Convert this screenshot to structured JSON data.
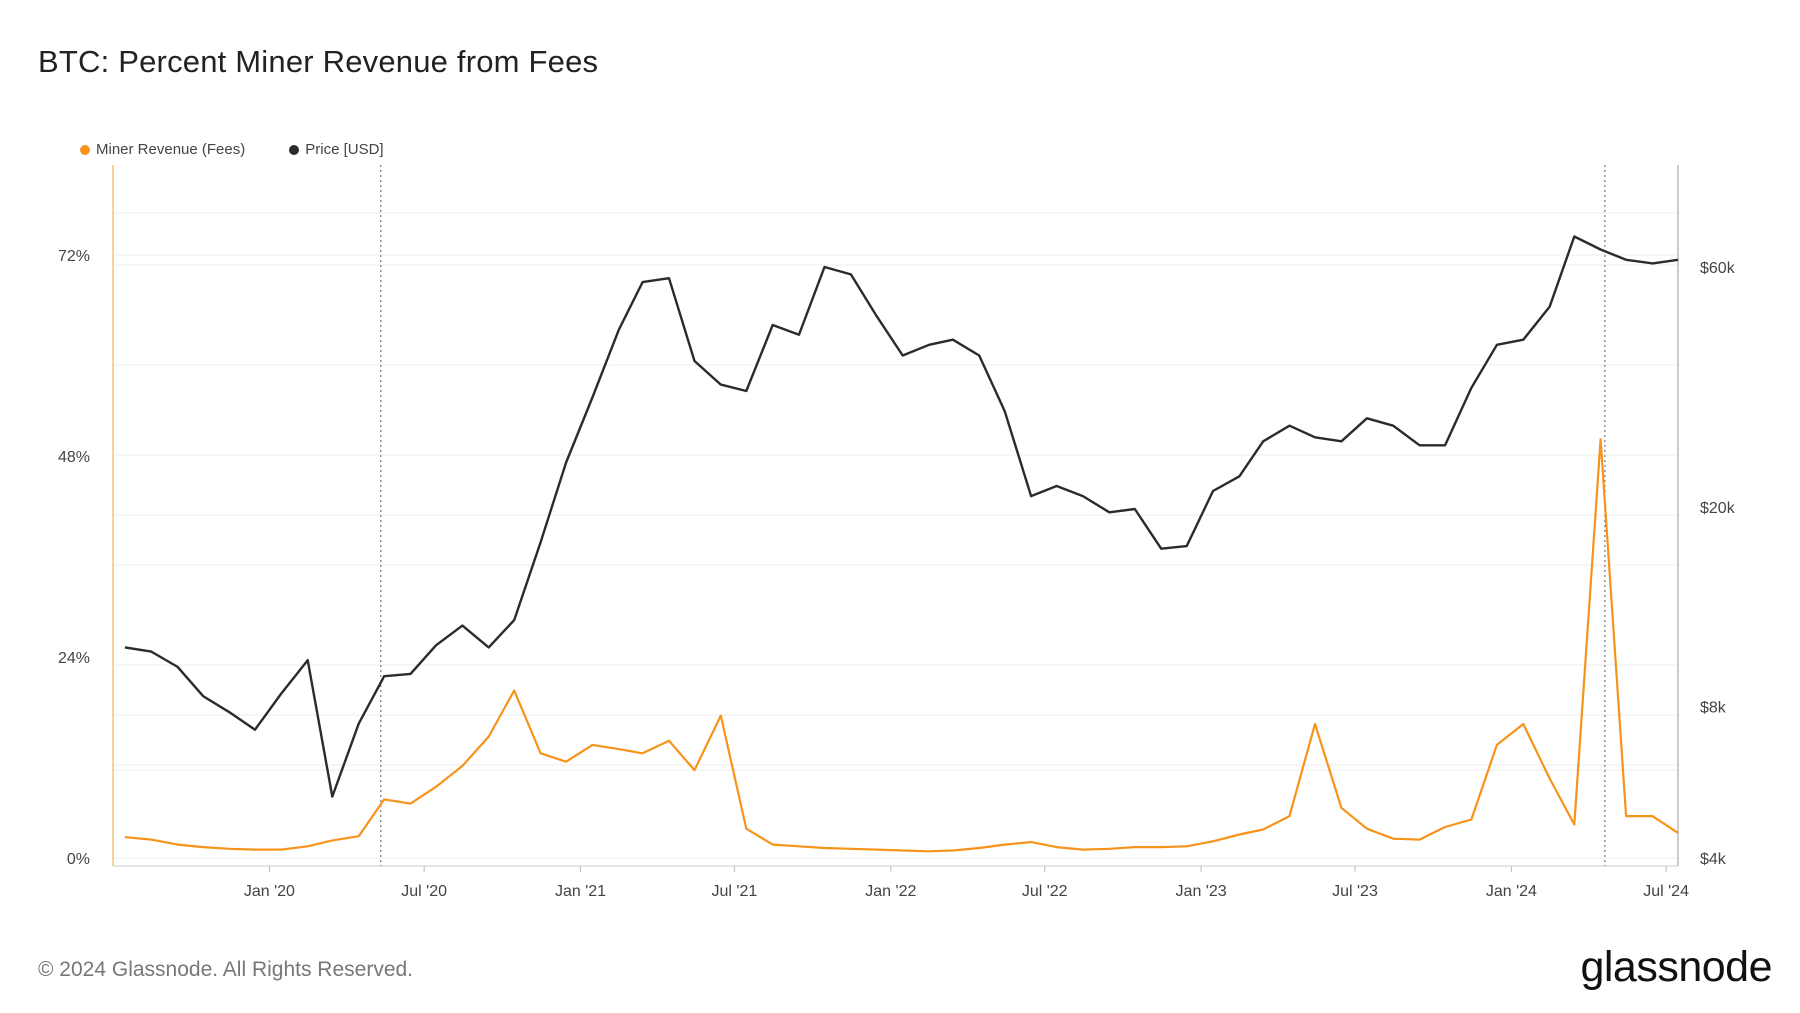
{
  "header": {
    "title": "BTC: Percent Miner Revenue from Fees"
  },
  "footer": {
    "copyright": "© 2024 Glassnode. All Rights Reserved.",
    "logo_text": "glassnode"
  },
  "colors": {
    "fees": "#f7931a",
    "price": "#2b2b2b",
    "grid": "#ececec",
    "event_line": "#777777"
  },
  "chart_data": {
    "type": "line",
    "title": "BTC: Percent Miner Revenue from Fees",
    "legend_position": "top-left",
    "grid": true,
    "x_axis": {
      "ticks": [
        "Jan '20",
        "Jul '20",
        "Jan '21",
        "Jul '21",
        "Jan '22",
        "Jul '22",
        "Jan '23",
        "Jul '23",
        "Jan '24",
        "Jul '24"
      ],
      "range": [
        "2019-07-01",
        "2024-07-15"
      ]
    },
    "y_axis_left": {
      "ticks": [
        "0%",
        "24%",
        "48%",
        "72%"
      ],
      "range": [
        0,
        72
      ]
    },
    "y_axis_right": {
      "scale": "log",
      "ticks": [
        "$4k",
        "$8k",
        "$20k",
        "$60k"
      ],
      "range": [
        4000,
        60000
      ]
    },
    "event_lines": [
      "2020-05-11",
      "2024-04-20"
    ],
    "series": [
      {
        "name": "Miner Revenue (Fees)",
        "axis": "left",
        "x": [
          "2019-07",
          "2019-08",
          "2019-09",
          "2019-10",
          "2019-11",
          "2019-12",
          "2020-01",
          "2020-02",
          "2020-03",
          "2020-04",
          "2020-05",
          "2020-06",
          "2020-07",
          "2020-08",
          "2020-09",
          "2020-10",
          "2020-11",
          "2020-12",
          "2021-01",
          "2021-02",
          "2021-03",
          "2021-04",
          "2021-05",
          "2021-06",
          "2021-07",
          "2021-08",
          "2021-09",
          "2021-10",
          "2021-11",
          "2021-12",
          "2022-01",
          "2022-02",
          "2022-03",
          "2022-04",
          "2022-05",
          "2022-06",
          "2022-07",
          "2022-08",
          "2022-09",
          "2022-10",
          "2022-11",
          "2022-12",
          "2023-01",
          "2023-02",
          "2023-03",
          "2023-04",
          "2023-05",
          "2023-06",
          "2023-07",
          "2023-08",
          "2023-09",
          "2023-10",
          "2023-11",
          "2023-12",
          "2024-01",
          "2024-02",
          "2024-03",
          "2024-04",
          "2024-05",
          "2024-06",
          "2024-07"
        ],
        "values": [
          2.5,
          2.2,
          1.6,
          1.3,
          1.1,
          1.0,
          1.0,
          1.4,
          2.1,
          2.6,
          7.0,
          6.5,
          8.5,
          11.0,
          14.5,
          20.0,
          12.5,
          11.5,
          13.5,
          13.0,
          12.5,
          14.0,
          10.5,
          17.0,
          3.5,
          1.6,
          1.4,
          1.2,
          1.1,
          1.0,
          0.9,
          0.8,
          0.9,
          1.2,
          1.6,
          1.9,
          1.3,
          1.0,
          1.1,
          1.3,
          1.3,
          1.4,
          2.0,
          2.8,
          3.4,
          5.0,
          16.0,
          6.0,
          3.5,
          2.3,
          2.2,
          3.7,
          4.6,
          13.5,
          16.0,
          9.5,
          4.0,
          50.0,
          5.0,
          5.0,
          3.0
        ]
      },
      {
        "name": "Price [USD]",
        "axis": "right",
        "x": [
          "2019-07",
          "2019-08",
          "2019-09",
          "2019-10",
          "2019-11",
          "2019-12",
          "2020-01",
          "2020-02",
          "2020-03",
          "2020-04",
          "2020-05",
          "2020-06",
          "2020-07",
          "2020-08",
          "2020-09",
          "2020-10",
          "2020-11",
          "2020-12",
          "2021-01",
          "2021-02",
          "2021-03",
          "2021-04",
          "2021-05",
          "2021-06",
          "2021-07",
          "2021-08",
          "2021-09",
          "2021-10",
          "2021-11",
          "2021-12",
          "2022-01",
          "2022-02",
          "2022-03",
          "2022-04",
          "2022-05",
          "2022-06",
          "2022-07",
          "2022-08",
          "2022-09",
          "2022-10",
          "2022-11",
          "2022-12",
          "2023-01",
          "2023-02",
          "2023-03",
          "2023-04",
          "2023-05",
          "2023-06",
          "2023-07",
          "2023-08",
          "2023-09",
          "2023-10",
          "2023-11",
          "2023-12",
          "2024-01",
          "2024-02",
          "2024-03",
          "2024-04",
          "2024-05",
          "2024-06",
          "2024-07"
        ],
        "values": [
          10500,
          10300,
          9600,
          8400,
          7800,
          7200,
          8500,
          9900,
          5300,
          7400,
          9200,
          9300,
          10600,
          11600,
          10500,
          11900,
          17000,
          24500,
          33000,
          45000,
          56000,
          57000,
          39000,
          35000,
          34000,
          46000,
          44000,
          60000,
          58000,
          48000,
          40000,
          42000,
          43000,
          40000,
          31000,
          21000,
          22000,
          21000,
          19500,
          19800,
          16500,
          16700,
          21500,
          23000,
          27000,
          29000,
          27500,
          27000,
          30000,
          29000,
          26500,
          26500,
          34500,
          42000,
          43000,
          50000,
          69000,
          65000,
          62000,
          61000,
          62000
        ]
      }
    ]
  }
}
